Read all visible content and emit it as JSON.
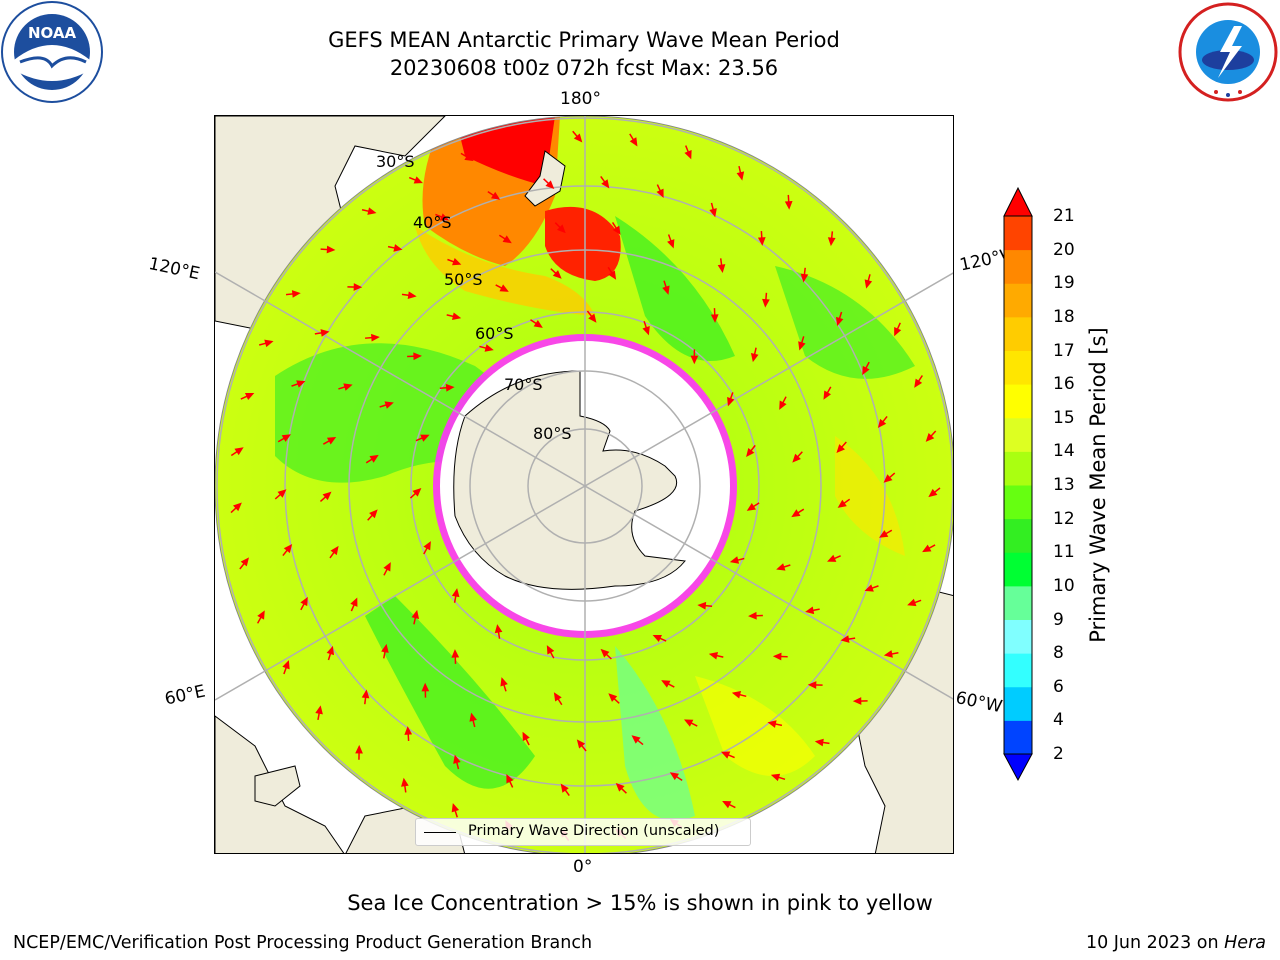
{
  "header": {
    "title_line1": "GEFS MEAN Antarctic Primary Wave Mean Period",
    "title_line2": "20230608 t00z 072h fcst   Max: 23.56"
  },
  "logos": {
    "noaa": {
      "icon": "noaa-seal-icon",
      "text": "NOAA",
      "ring_text": "NATIONAL OCEANIC AND ATMOSPHERIC ADMINISTRATION · U.S. DEPARTMENT OF COMMERCE"
    },
    "nws": {
      "icon": "nws-seal-icon",
      "ring_text": "NATIONAL WEATHER SERVICE"
    }
  },
  "map": {
    "projection": "south-polar-stereographic",
    "longitude_labels": {
      "top": "180°",
      "bottom": "0°",
      "upper_left": "120°E",
      "upper_right": "120°W",
      "lower_left": "60°E",
      "lower_right": "60°W"
    },
    "latitude_labels": [
      "30°S",
      "40°S",
      "50°S",
      "60°S",
      "70°S",
      "80°S"
    ],
    "legend": {
      "label": "Primary Wave Direction (unscaled)",
      "line_color": "#000000"
    },
    "colors": {
      "land": "#efecdb",
      "ice_edge": "#ff33ff",
      "arrow": "#ff0000"
    }
  },
  "colorbar": {
    "label": "Primary Wave Mean Period [s]",
    "ticks": [
      "2",
      "4",
      "6",
      "8",
      "9",
      "10",
      "11",
      "12",
      "13",
      "14",
      "15",
      "16",
      "17",
      "18",
      "19",
      "20",
      "21"
    ],
    "colors": [
      "#0044ff",
      "#00ccff",
      "#33ffff",
      "#80ffff",
      "#66ff99",
      "#00ff33",
      "#33ee22",
      "#66ff11",
      "#aaff11",
      "#ddff22",
      "#ffff00",
      "#ffe600",
      "#ffcc00",
      "#ffaa00",
      "#ff8800",
      "#ff4400",
      "#ff0000"
    ],
    "under_color": "#0000ff",
    "over_color": "#ff0000"
  },
  "notes": {
    "sea_ice": "Sea Ice Concentration > 15% is shown in pink to yellow"
  },
  "footer": {
    "left": "NCEP/EMC/Verification Post Processing Product Generation Branch",
    "right_date": "10 Jun 2023 on ",
    "right_machine": "Hera"
  }
}
